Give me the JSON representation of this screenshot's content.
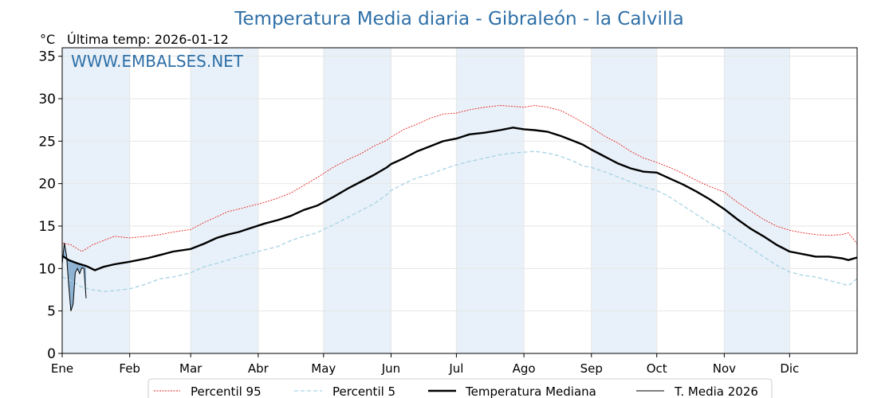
{
  "chart_data": {
    "type": "line",
    "title": "Temperatura Media diaria - Gibraleón - la Calvilla",
    "unit_label": "°C",
    "last_temp_label": "Última temp: 2026-01-12",
    "watermark": "WWW.EMBALSES.NET",
    "ylim": [
      0,
      36
    ],
    "yticks": [
      0,
      5,
      10,
      15,
      20,
      25,
      30,
      35
    ],
    "xlim": [
      1,
      366
    ],
    "months": [
      {
        "label": "Ene",
        "start_day": 1
      },
      {
        "label": "Feb",
        "start_day": 32
      },
      {
        "label": "Mar",
        "start_day": 60
      },
      {
        "label": "Abr",
        "start_day": 91
      },
      {
        "label": "May",
        "start_day": 121
      },
      {
        "label": "Jun",
        "start_day": 152
      },
      {
        "label": "Jul",
        "start_day": 182
      },
      {
        "label": "Ago",
        "start_day": 213
      },
      {
        "label": "Sep",
        "start_day": 244
      },
      {
        "label": "Oct",
        "start_day": 274
      },
      {
        "label": "Nov",
        "start_day": 305
      },
      {
        "label": "Dic",
        "start_day": 335
      }
    ],
    "grid": true,
    "legend_position": "bottom",
    "colors": {
      "title": "#2e6fa7",
      "p95": "#e8231e",
      "p5": "#a6d3e3",
      "median": "#000000",
      "current": "#000000",
      "current_fill": "#7fa9cc",
      "band": "#e8f1f9",
      "grid": "#e6e6e6"
    },
    "series": [
      {
        "key": "p95",
        "name": "Percentil 95",
        "x": [
          1,
          5,
          10,
          15,
          20,
          25,
          32,
          40,
          46,
          52,
          60,
          66,
          72,
          77,
          82,
          88,
          94,
          100,
          106,
          112,
          118,
          121,
          126,
          132,
          138,
          144,
          150,
          152,
          158,
          164,
          170,
          176,
          182,
          188,
          195,
          202,
          208,
          213,
          218,
          224,
          230,
          236,
          240,
          244,
          250,
          256,
          262,
          268,
          274,
          280,
          286,
          292,
          298,
          305,
          311,
          317,
          323,
          329,
          335,
          341,
          347,
          353,
          359,
          362,
          366
        ],
        "y": [
          13.0,
          12.8,
          12.0,
          12.8,
          13.3,
          13.8,
          13.6,
          13.8,
          14.0,
          14.3,
          14.6,
          15.4,
          16.1,
          16.7,
          17.0,
          17.4,
          17.8,
          18.3,
          18.9,
          19.8,
          20.7,
          21.2,
          22.0,
          22.8,
          23.5,
          24.4,
          25.1,
          25.5,
          26.4,
          27.0,
          27.7,
          28.2,
          28.3,
          28.7,
          29.0,
          29.2,
          29.1,
          29.0,
          29.2,
          29.0,
          28.6,
          27.8,
          27.2,
          26.6,
          25.6,
          24.8,
          23.8,
          23.0,
          22.5,
          21.9,
          21.2,
          20.4,
          19.7,
          19.0,
          17.8,
          16.8,
          15.8,
          15.0,
          14.5,
          14.2,
          14.0,
          13.9,
          14.0,
          14.2,
          12.9
        ]
      },
      {
        "key": "p5",
        "name": "Percentil 5",
        "x": [
          1,
          5,
          10,
          15,
          20,
          25,
          32,
          40,
          46,
          52,
          60,
          66,
          72,
          77,
          82,
          88,
          94,
          100,
          106,
          112,
          118,
          121,
          126,
          132,
          138,
          144,
          150,
          152,
          158,
          164,
          170,
          176,
          182,
          188,
          195,
          202,
          208,
          213,
          218,
          224,
          230,
          236,
          240,
          244,
          250,
          256,
          262,
          268,
          274,
          280,
          286,
          292,
          298,
          305,
          311,
          317,
          323,
          329,
          335,
          341,
          347,
          353,
          359,
          362,
          366
        ],
        "y": [
          9.0,
          8.6,
          7.8,
          7.5,
          7.3,
          7.4,
          7.6,
          8.2,
          8.8,
          9.0,
          9.5,
          10.2,
          10.6,
          11.0,
          11.4,
          11.8,
          12.2,
          12.6,
          13.3,
          13.8,
          14.2,
          14.6,
          15.2,
          16.0,
          16.8,
          17.6,
          18.7,
          19.2,
          20.0,
          20.7,
          21.1,
          21.7,
          22.2,
          22.6,
          23.0,
          23.4,
          23.6,
          23.7,
          23.8,
          23.6,
          23.2,
          22.6,
          22.1,
          21.9,
          21.4,
          20.8,
          20.2,
          19.6,
          19.2,
          18.4,
          17.4,
          16.4,
          15.4,
          14.4,
          13.4,
          12.4,
          11.4,
          10.4,
          9.6,
          9.2,
          9.0,
          8.6,
          8.2,
          8.0,
          8.8
        ]
      },
      {
        "key": "median",
        "name": "Temperatura Mediana",
        "x": [
          1,
          4,
          8,
          12,
          16,
          20,
          25,
          32,
          40,
          46,
          52,
          60,
          66,
          72,
          77,
          82,
          88,
          94,
          100,
          106,
          112,
          118,
          121,
          126,
          132,
          138,
          144,
          150,
          152,
          158,
          164,
          170,
          176,
          182,
          188,
          195,
          202,
          208,
          213,
          218,
          224,
          230,
          236,
          240,
          244,
          250,
          256,
          262,
          268,
          274,
          280,
          286,
          292,
          298,
          305,
          311,
          317,
          323,
          329,
          335,
          341,
          347,
          353,
          359,
          362,
          366
        ],
        "y": [
          11.5,
          11.0,
          10.6,
          10.3,
          9.8,
          10.2,
          10.5,
          10.8,
          11.2,
          11.6,
          12.0,
          12.3,
          12.9,
          13.6,
          14.0,
          14.3,
          14.8,
          15.3,
          15.7,
          16.2,
          16.9,
          17.4,
          17.8,
          18.5,
          19.4,
          20.2,
          21.0,
          21.9,
          22.3,
          23.0,
          23.8,
          24.4,
          25.0,
          25.3,
          25.8,
          26.0,
          26.3,
          26.6,
          26.4,
          26.3,
          26.1,
          25.6,
          25.0,
          24.6,
          24.0,
          23.2,
          22.4,
          21.8,
          21.4,
          21.3,
          20.6,
          19.9,
          19.1,
          18.2,
          17.0,
          15.8,
          14.7,
          13.8,
          12.8,
          12.0,
          11.7,
          11.4,
          11.4,
          11.2,
          11.0,
          11.3
        ]
      },
      {
        "key": "current",
        "name": "T. Media 2026",
        "x": [
          1,
          2,
          3,
          4,
          5,
          6,
          7,
          8,
          9,
          10,
          11,
          12
        ],
        "y": [
          10.5,
          13.0,
          11.5,
          8.0,
          5.0,
          5.8,
          9.5,
          10.0,
          9.4,
          10.1,
          10.0,
          6.5
        ]
      }
    ]
  }
}
